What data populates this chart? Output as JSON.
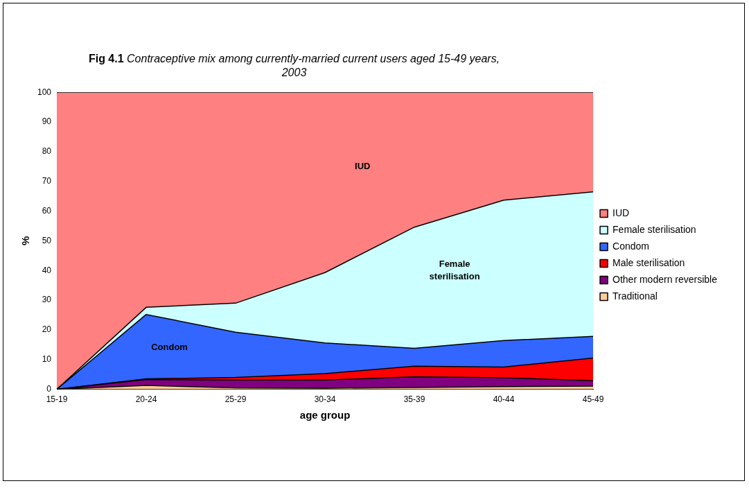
{
  "chart_data": {
    "type": "area",
    "stacked": true,
    "title": "Fig 4.1",
    "subtitle": "Contraceptive mix among currently-married current users aged 15-49 years, 2003",
    "xlabel": "age group",
    "ylabel": "%",
    "categories": [
      "15-19",
      "20-24",
      "25-29",
      "30-34",
      "35-39",
      "40-44",
      "45-49"
    ],
    "series": [
      {
        "name": "Traditional",
        "color": "#ffcc99",
        "values": [
          0,
          1.3,
          0.5,
          0.4,
          0.6,
          0.9,
          1.1
        ]
      },
      {
        "name": "Other modern reversible",
        "color": "#800080",
        "values": [
          0,
          2.0,
          2.6,
          2.7,
          3.6,
          3.0,
          1.8
        ]
      },
      {
        "name": "Male sterilisation",
        "color": "#ff0000",
        "values": [
          0,
          0.2,
          0.9,
          2.2,
          3.6,
          3.6,
          7.6
        ]
      },
      {
        "name": "Condom",
        "color": "#3366ff",
        "values": [
          0,
          21.7,
          15.2,
          10.3,
          6.0,
          8.9,
          7.3
        ]
      },
      {
        "name": "Female sterilisation",
        "color": "#ccffff",
        "values": [
          0,
          2.4,
          9.8,
          23.7,
          40.8,
          47.3,
          48.7
        ]
      },
      {
        "name": "IUD",
        "color": "#ff8080",
        "values": [
          100,
          72.4,
          71,
          60.7,
          45.4,
          36.3,
          33.5
        ]
      }
    ],
    "ylim": [
      0,
      100
    ],
    "yticks": [
      0,
      10,
      20,
      30,
      40,
      50,
      60,
      70,
      80,
      90,
      100
    ],
    "grid": false,
    "legend": "right",
    "annotations": [
      "IUD",
      "Female sterilisation",
      "Condom"
    ]
  }
}
